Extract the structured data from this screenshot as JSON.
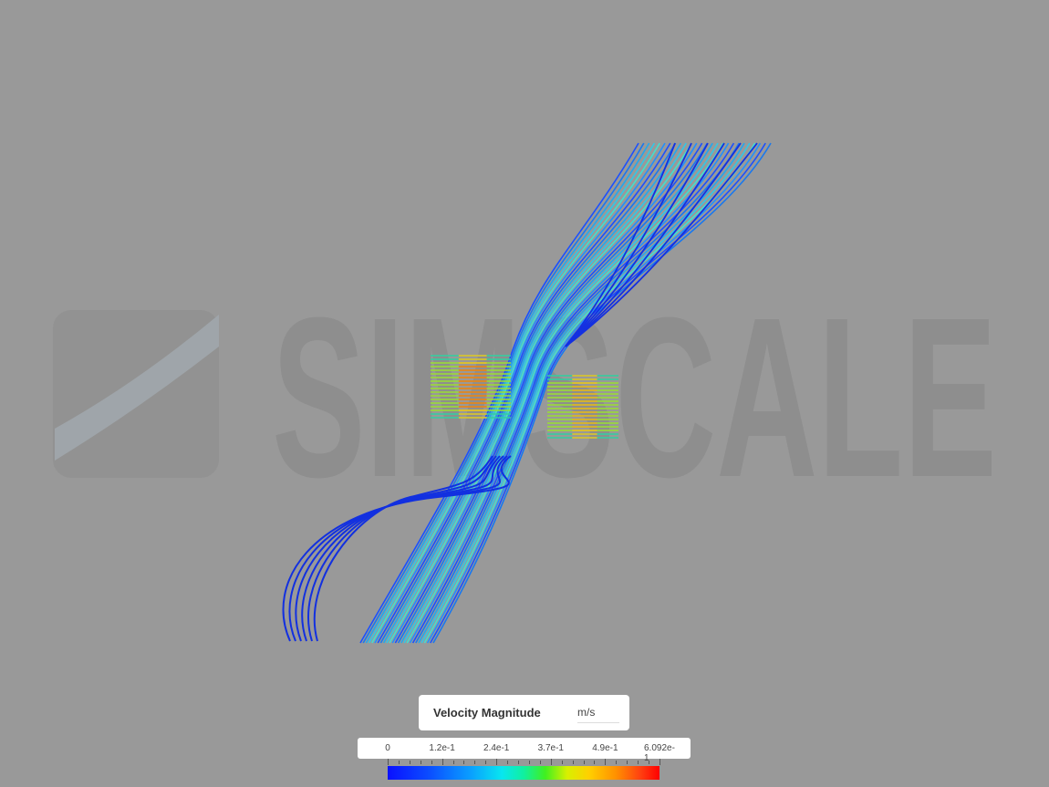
{
  "watermark": "SIMSCALE",
  "legend": {
    "title": "Velocity Magnitude",
    "unit": "m/s",
    "ticks": [
      "0",
      "1.2e-1",
      "2.4e-1",
      "3.7e-1",
      "4.9e-1",
      "6.092e-1"
    ]
  }
}
